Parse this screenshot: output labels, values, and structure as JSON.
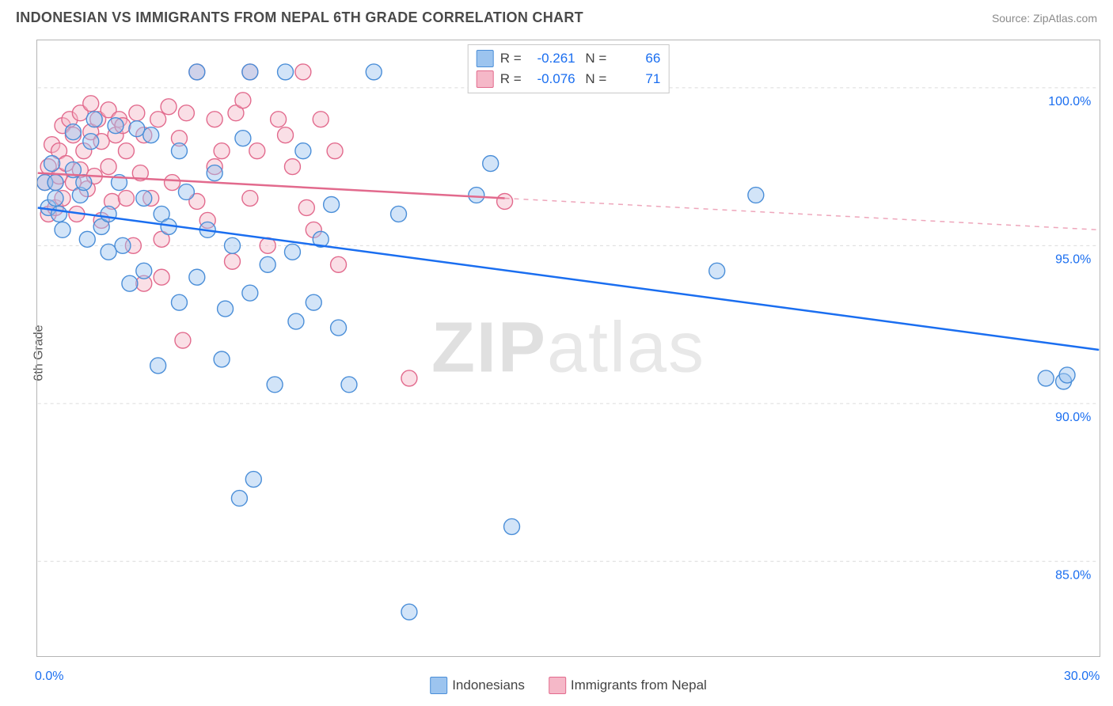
{
  "header": {
    "title": "INDONESIAN VS IMMIGRANTS FROM NEPAL 6TH GRADE CORRELATION CHART",
    "source": "Source: ZipAtlas.com"
  },
  "chart": {
    "type": "scatter",
    "ylabel": "6th Grade",
    "watermark_a": "ZIP",
    "watermark_b": "atlas",
    "background_color": "#ffffff",
    "frame_color": "#b5b5b5",
    "grid_color": "#dcdcdc",
    "xlim": [
      0,
      30
    ],
    "ylim": [
      82,
      101.5
    ],
    "x_ticks": [
      0,
      3.33,
      6.67,
      10,
      13.33,
      16.67,
      20,
      23.33,
      26.67,
      30
    ],
    "x_tick_labels_shown": {
      "0": "0.0%",
      "30": "30.0%"
    },
    "y_ticks": [
      85,
      90,
      95,
      100
    ],
    "y_tick_labels": {
      "85": "85.0%",
      "90": "90.0%",
      "95": "95.0%",
      "100": "100.0%"
    },
    "marker_radius": 10,
    "marker_opacity": 0.45,
    "series": {
      "indonesians": {
        "label": "Indonesians",
        "color_fill": "#9cc4ef",
        "color_stroke": "#4a8ed8",
        "R": "-0.261",
        "N": "66",
        "trend": {
          "x1": 0,
          "y1": 96.2,
          "x2": 30,
          "y2": 91.7,
          "color": "#1a6ef0",
          "dash_from_x": 30
        },
        "points": [
          [
            0.2,
            97.0
          ],
          [
            0.3,
            96.2
          ],
          [
            0.4,
            97.6
          ],
          [
            0.5,
            97.0
          ],
          [
            0.5,
            96.5
          ],
          [
            0.6,
            96.0
          ],
          [
            0.7,
            95.5
          ],
          [
            1.0,
            97.4
          ],
          [
            1.0,
            98.6
          ],
          [
            1.2,
            96.6
          ],
          [
            1.3,
            97.0
          ],
          [
            1.4,
            95.2
          ],
          [
            1.5,
            98.3
          ],
          [
            1.6,
            99.0
          ],
          [
            1.8,
            95.6
          ],
          [
            2.0,
            94.8
          ],
          [
            2.0,
            96.0
          ],
          [
            2.2,
            98.8
          ],
          [
            2.3,
            97.0
          ],
          [
            2.4,
            95.0
          ],
          [
            2.6,
            93.8
          ],
          [
            2.8,
            98.7
          ],
          [
            3.0,
            96.5
          ],
          [
            3.0,
            94.2
          ],
          [
            3.2,
            98.5
          ],
          [
            3.4,
            91.2
          ],
          [
            3.5,
            96.0
          ],
          [
            3.7,
            95.6
          ],
          [
            4.0,
            98.0
          ],
          [
            4.0,
            93.2
          ],
          [
            4.2,
            96.7
          ],
          [
            4.5,
            94.0
          ],
          [
            4.5,
            100.5
          ],
          [
            4.8,
            95.5
          ],
          [
            5.0,
            97.3
          ],
          [
            5.2,
            91.4
          ],
          [
            5.3,
            93.0
          ],
          [
            5.5,
            95.0
          ],
          [
            5.7,
            87.0
          ],
          [
            5.8,
            98.4
          ],
          [
            6.0,
            93.5
          ],
          [
            6.0,
            100.5
          ],
          [
            6.1,
            87.6
          ],
          [
            6.5,
            94.4
          ],
          [
            6.7,
            90.6
          ],
          [
            7.0,
            100.5
          ],
          [
            7.2,
            94.8
          ],
          [
            7.3,
            92.6
          ],
          [
            7.5,
            98.0
          ],
          [
            7.8,
            93.2
          ],
          [
            8.0,
            95.2
          ],
          [
            8.3,
            96.3
          ],
          [
            8.5,
            92.4
          ],
          [
            8.8,
            90.6
          ],
          [
            9.5,
            100.5
          ],
          [
            10.2,
            96.0
          ],
          [
            10.5,
            83.4
          ],
          [
            12.4,
            96.6
          ],
          [
            12.8,
            97.6
          ],
          [
            13.4,
            86.1
          ],
          [
            17.3,
            100.5
          ],
          [
            19.2,
            94.2
          ],
          [
            20.3,
            96.6
          ],
          [
            28.5,
            90.8
          ],
          [
            29.0,
            90.7
          ],
          [
            29.1,
            90.9
          ]
        ]
      },
      "nepal": {
        "label": "Immigrants from Nepal",
        "color_fill": "#f5b8c8",
        "color_stroke": "#e26a8d",
        "R": "-0.076",
        "N": "71",
        "trend": {
          "x1": 0,
          "y1": 97.3,
          "x2": 13.2,
          "y2": 96.5,
          "extend_x": 30,
          "extend_y": 95.5,
          "color": "#e26a8d"
        },
        "points": [
          [
            0.2,
            97.0
          ],
          [
            0.3,
            97.5
          ],
          [
            0.3,
            96.0
          ],
          [
            0.4,
            98.2
          ],
          [
            0.5,
            97.0
          ],
          [
            0.5,
            96.2
          ],
          [
            0.6,
            98.0
          ],
          [
            0.6,
            97.2
          ],
          [
            0.7,
            98.8
          ],
          [
            0.7,
            96.5
          ],
          [
            0.8,
            97.6
          ],
          [
            0.9,
            99.0
          ],
          [
            1.0,
            97.0
          ],
          [
            1.0,
            98.5
          ],
          [
            1.1,
            96.0
          ],
          [
            1.2,
            99.2
          ],
          [
            1.2,
            97.4
          ],
          [
            1.3,
            98.0
          ],
          [
            1.4,
            96.8
          ],
          [
            1.5,
            98.6
          ],
          [
            1.5,
            99.5
          ],
          [
            1.6,
            97.2
          ],
          [
            1.7,
            99.0
          ],
          [
            1.8,
            95.8
          ],
          [
            1.8,
            98.3
          ],
          [
            2.0,
            99.3
          ],
          [
            2.0,
            97.5
          ],
          [
            2.1,
            96.4
          ],
          [
            2.2,
            98.5
          ],
          [
            2.3,
            99.0
          ],
          [
            2.4,
            98.8
          ],
          [
            2.5,
            96.5
          ],
          [
            2.5,
            98.0
          ],
          [
            2.7,
            95.0
          ],
          [
            2.8,
            99.2
          ],
          [
            2.9,
            97.3
          ],
          [
            3.0,
            93.8
          ],
          [
            3.0,
            98.5
          ],
          [
            3.2,
            96.5
          ],
          [
            3.4,
            99.0
          ],
          [
            3.5,
            95.2
          ],
          [
            3.5,
            94.0
          ],
          [
            3.7,
            99.4
          ],
          [
            3.8,
            97.0
          ],
          [
            4.0,
            98.4
          ],
          [
            4.1,
            92.0
          ],
          [
            4.2,
            99.2
          ],
          [
            4.5,
            96.4
          ],
          [
            4.5,
            100.5
          ],
          [
            4.8,
            95.8
          ],
          [
            5.0,
            99.0
          ],
          [
            5.0,
            97.5
          ],
          [
            5.2,
            98.0
          ],
          [
            5.5,
            94.5
          ],
          [
            5.6,
            99.2
          ],
          [
            5.8,
            99.6
          ],
          [
            6.0,
            96.5
          ],
          [
            6.0,
            100.5
          ],
          [
            6.2,
            98.0
          ],
          [
            6.5,
            95.0
          ],
          [
            6.8,
            99.0
          ],
          [
            7.0,
            98.5
          ],
          [
            7.2,
            97.5
          ],
          [
            7.5,
            100.5
          ],
          [
            7.6,
            96.2
          ],
          [
            7.8,
            95.5
          ],
          [
            8.0,
            99.0
          ],
          [
            8.4,
            98.0
          ],
          [
            8.5,
            94.4
          ],
          [
            10.5,
            90.8
          ],
          [
            13.2,
            96.4
          ]
        ]
      }
    }
  }
}
